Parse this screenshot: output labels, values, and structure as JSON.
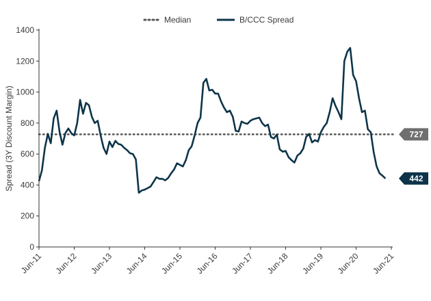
{
  "colors": {
    "series": "#0d3449",
    "median": "#555555",
    "median_callout": "#6f6f6f",
    "last_callout": "#0d3449",
    "axis": "#333333",
    "text": "#3a3a3a"
  },
  "chart_data": {
    "type": "line",
    "ylabel": "Spread (3Y Discount Margin)",
    "ylim": [
      0,
      1400
    ],
    "y_ticks": [
      0,
      200,
      400,
      600,
      800,
      1000,
      1200,
      1400
    ],
    "x_range": [
      0,
      120
    ],
    "x_tick_labels": [
      "Jun-11",
      "Jun-12",
      "Jun-13",
      "Jun-14",
      "Jun-15",
      "Jun-16",
      "Jun-17",
      "Jun-18",
      "Jun-19",
      "Jun-20",
      "Jun-21"
    ],
    "legend": [
      "Median",
      "B/CCC Spread"
    ],
    "legend_position": "top",
    "median_value": 727,
    "callouts": {
      "median": "727",
      "last": "442"
    },
    "series": [
      {
        "name": "B/CCC Spread",
        "points": [
          [
            0,
            425
          ],
          [
            1,
            495
          ],
          [
            2,
            640
          ],
          [
            3,
            730
          ],
          [
            4,
            670
          ],
          [
            5,
            830
          ],
          [
            6,
            880
          ],
          [
            7,
            745
          ],
          [
            8,
            660
          ],
          [
            9,
            735
          ],
          [
            10,
            765
          ],
          [
            11,
            735
          ],
          [
            12,
            720
          ],
          [
            13,
            800
          ],
          [
            14,
            950
          ],
          [
            15,
            860
          ],
          [
            16,
            930
          ],
          [
            17,
            915
          ],
          [
            18,
            840
          ],
          [
            19,
            800
          ],
          [
            20,
            815
          ],
          [
            21,
            720
          ],
          [
            22,
            640
          ],
          [
            23,
            600
          ],
          [
            24,
            680
          ],
          [
            25,
            645
          ],
          [
            26,
            685
          ],
          [
            27,
            665
          ],
          [
            28,
            660
          ],
          [
            29,
            640
          ],
          [
            30,
            625
          ],
          [
            31,
            605
          ],
          [
            32,
            600
          ],
          [
            33,
            565
          ],
          [
            34,
            350
          ],
          [
            35,
            365
          ],
          [
            36,
            370
          ],
          [
            37,
            380
          ],
          [
            38,
            390
          ],
          [
            39,
            420
          ],
          [
            40,
            450
          ],
          [
            41,
            440
          ],
          [
            42,
            440
          ],
          [
            43,
            430
          ],
          [
            44,
            445
          ],
          [
            45,
            475
          ],
          [
            46,
            500
          ],
          [
            47,
            540
          ],
          [
            48,
            530
          ],
          [
            49,
            520
          ],
          [
            50,
            560
          ],
          [
            51,
            625
          ],
          [
            52,
            650
          ],
          [
            53,
            720
          ],
          [
            54,
            800
          ],
          [
            55,
            835
          ],
          [
            56,
            1060
          ],
          [
            57,
            1085
          ],
          [
            58,
            1010
          ],
          [
            59,
            1015
          ],
          [
            60,
            990
          ],
          [
            61,
            990
          ],
          [
            62,
            940
          ],
          [
            63,
            900
          ],
          [
            64,
            870
          ],
          [
            65,
            880
          ],
          [
            66,
            840
          ],
          [
            67,
            750
          ],
          [
            68,
            745
          ],
          [
            69,
            810
          ],
          [
            70,
            800
          ],
          [
            71,
            795
          ],
          [
            72,
            815
          ],
          [
            73,
            825
          ],
          [
            74,
            830
          ],
          [
            75,
            835
          ],
          [
            76,
            800
          ],
          [
            77,
            780
          ],
          [
            78,
            790
          ],
          [
            79,
            710
          ],
          [
            80,
            700
          ],
          [
            81,
            725
          ],
          [
            82,
            630
          ],
          [
            83,
            615
          ],
          [
            84,
            620
          ],
          [
            85,
            580
          ],
          [
            86,
            560
          ],
          [
            87,
            545
          ],
          [
            88,
            590
          ],
          [
            89,
            605
          ],
          [
            90,
            635
          ],
          [
            91,
            710
          ],
          [
            92,
            730
          ],
          [
            93,
            675
          ],
          [
            94,
            690
          ],
          [
            95,
            680
          ],
          [
            96,
            740
          ],
          [
            97,
            775
          ],
          [
            98,
            800
          ],
          [
            99,
            870
          ],
          [
            100,
            960
          ],
          [
            101,
            910
          ],
          [
            102,
            870
          ],
          [
            103,
            825
          ],
          [
            104,
            1200
          ],
          [
            105,
            1260
          ],
          [
            106,
            1285
          ],
          [
            107,
            1110
          ],
          [
            108,
            1070
          ],
          [
            109,
            960
          ],
          [
            110,
            870
          ],
          [
            111,
            880
          ],
          [
            112,
            760
          ],
          [
            113,
            740
          ],
          [
            114,
            610
          ],
          [
            115,
            520
          ],
          [
            116,
            475
          ],
          [
            117,
            460
          ],
          [
            118,
            442
          ]
        ]
      }
    ]
  }
}
